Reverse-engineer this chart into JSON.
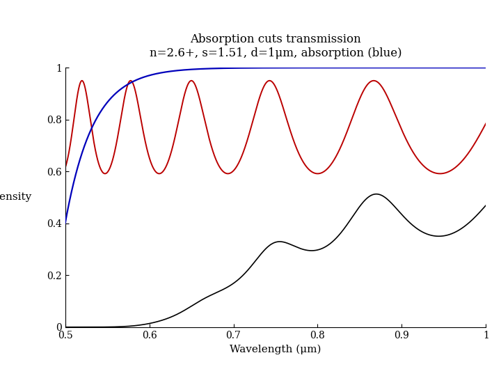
{
  "title_line1": "Absorption cuts transmission",
  "title_line2": "n=2.6+, s=1.51, d=1μm, absorption (blue)",
  "xlabel": "Wavelength (μm)",
  "ylabel": "Intensity",
  "xlim": [
    0.5,
    1.0
  ],
  "ylim": [
    0,
    1.0
  ],
  "n_real": 2.6,
  "s": 1.51,
  "d": 1.0,
  "bg_color": "#ffffff",
  "blue_color": "#0000bb",
  "red_color": "#bb0000",
  "black_color": "#000000"
}
